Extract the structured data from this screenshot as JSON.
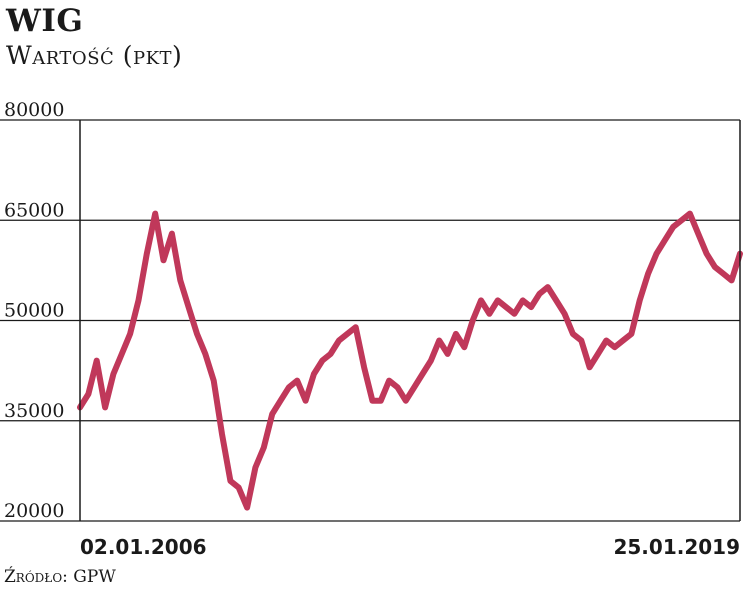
{
  "chart_data": {
    "type": "line",
    "title": "WIG",
    "subtitle": "Wartość (pkt)",
    "ylim": [
      20000,
      80000
    ],
    "yticks": [
      "80000",
      "65000",
      "50000",
      "35000",
      "20000"
    ],
    "ytick_values": [
      80000,
      65000,
      50000,
      35000,
      20000
    ],
    "x_start_label": "02.01.2006",
    "x_end_label": "25.01.2019",
    "grid": "horizontal",
    "series_color": "#c0385a",
    "series": [
      {
        "x": [
          "2006-01-02",
          "2006-03",
          "2006-05",
          "2006-07",
          "2006-09",
          "2006-11",
          "2007-01",
          "2007-03",
          "2007-05",
          "2007-07",
          "2007-09",
          "2007-11",
          "2008-01",
          "2008-03",
          "2008-05",
          "2008-07",
          "2008-09",
          "2008-11",
          "2009-01",
          "2009-02",
          "2009-04",
          "2009-06",
          "2009-08",
          "2009-10",
          "2009-12",
          "2010-02",
          "2010-04",
          "2010-06",
          "2010-08",
          "2010-10",
          "2010-12",
          "2011-02",
          "2011-04",
          "2011-06",
          "2011-08",
          "2011-09",
          "2011-11",
          "2012-01",
          "2012-03",
          "2012-05",
          "2012-07",
          "2012-09",
          "2012-11",
          "2013-01",
          "2013-03",
          "2013-05",
          "2013-07",
          "2013-09",
          "2013-11",
          "2014-01",
          "2014-03",
          "2014-05",
          "2014-07",
          "2014-09",
          "2014-11",
          "2015-01",
          "2015-03",
          "2015-05",
          "2015-07",
          "2015-09",
          "2015-11",
          "2016-01",
          "2016-03",
          "2016-05",
          "2016-07",
          "2016-09",
          "2016-11",
          "2017-01",
          "2017-03",
          "2017-05",
          "2017-07",
          "2017-09",
          "2017-11",
          "2018-01",
          "2018-03",
          "2018-05",
          "2018-07",
          "2018-09",
          "2018-11",
          "2019-01-25"
        ],
        "values": [
          37000,
          39000,
          44000,
          37000,
          42000,
          45000,
          48000,
          53000,
          60000,
          66000,
          59000,
          63000,
          56000,
          52000,
          48000,
          45000,
          41000,
          33000,
          26000,
          25000,
          22000,
          28000,
          31000,
          36000,
          38000,
          40000,
          41000,
          38000,
          42000,
          44000,
          45000,
          47000,
          48000,
          49000,
          43000,
          38000,
          38000,
          41000,
          40000,
          38000,
          40000,
          42000,
          44000,
          47000,
          45000,
          48000,
          46000,
          50000,
          53000,
          51000,
          53000,
          52000,
          51000,
          53000,
          52000,
          54000,
          55000,
          53000,
          51000,
          48000,
          47000,
          43000,
          45000,
          47000,
          46000,
          47000,
          48000,
          53000,
          57000,
          60000,
          62000,
          64000,
          65000,
          66000,
          63000,
          60000,
          58000,
          57000,
          56000,
          60000
        ]
      }
    ]
  },
  "source": "Źródło: GPW"
}
